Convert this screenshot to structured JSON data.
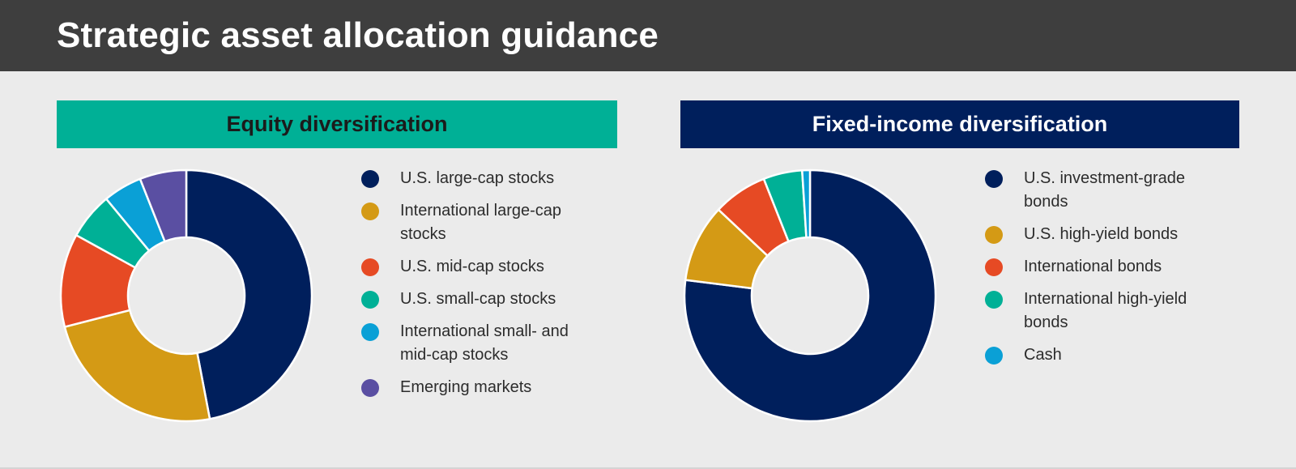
{
  "page": {
    "title": "Strategic asset allocation guidance"
  },
  "panels": [
    {
      "id": "equity",
      "heading": "Equity diversification",
      "heading_bg": "#00b096",
      "heading_color": "#1b1b1b"
    },
    {
      "id": "fixed-income",
      "heading": "Fixed-income diversification",
      "heading_bg": "#001f5c",
      "heading_color": "#ffffff"
    }
  ],
  "chart_data": [
    {
      "type": "pie",
      "style": "donut",
      "title": "Equity diversification",
      "legend_position": "right",
      "labels": [
        "U.S. large-cap stocks",
        "International large-cap stocks",
        "U.S. mid-cap stocks",
        "U.S. small-cap stocks",
        "International small- and mid-cap stocks",
        "Emerging markets"
      ],
      "values": [
        47,
        24,
        12,
        6,
        5,
        6
      ],
      "colors": [
        "#001f5c",
        "#d49a15",
        "#e64a24",
        "#00b096",
        "#0aa0d6",
        "#5a4fa2"
      ]
    },
    {
      "type": "pie",
      "style": "donut",
      "title": "Fixed-income diversification",
      "legend_position": "right",
      "labels": [
        "U.S. investment-grade bonds",
        "U.S. high-yield bonds",
        "International bonds",
        "International high-yield bonds",
        "Cash"
      ],
      "values": [
        77,
        10,
        7,
        5,
        1
      ],
      "colors": [
        "#001f5c",
        "#d49a15",
        "#e64a24",
        "#00b096",
        "#0aa0d6"
      ]
    }
  ]
}
